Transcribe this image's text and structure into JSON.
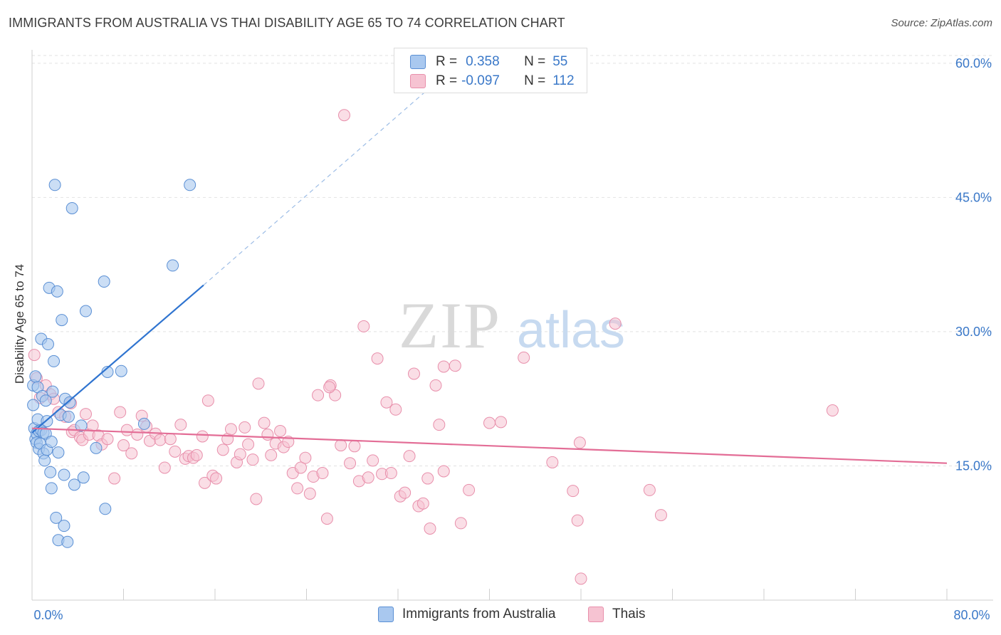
{
  "title": "IMMIGRANTS FROM AUSTRALIA VS THAI DISABILITY AGE 65 TO 74 CORRELATION CHART",
  "source": "Source: ZipAtlas.com",
  "watermark": {
    "zip": "ZIP",
    "atlas": "atlas"
  },
  "legend": {
    "rows": [
      {
        "r_label": "R =",
        "r_value": "0.358",
        "n_label": "N =",
        "n_value": "55"
      },
      {
        "r_label": "R =",
        "r_value": "-0.097",
        "n_label": "N =",
        "n_value": "112"
      }
    ]
  },
  "bottom_legend": [
    "Immigrants from Australia",
    "Thais"
  ],
  "colors": {
    "blue_fill": "#a9c8ef",
    "blue_stroke": "#5a8fd4",
    "blue_line": "#2f74d0",
    "pink_fill": "#f6c3d2",
    "pink_stroke": "#e88fab",
    "pink_line": "#e36d96",
    "grid": "#e2e2e2",
    "tick_label": "#3a78c8"
  },
  "chart_data": {
    "type": "scatter",
    "title": "IMMIGRANTS FROM AUSTRALIA VS THAI DISABILITY AGE 65 TO 74 CORRELATION CHART",
    "xlabel": "",
    "ylabel": "Disability Age 65 to 74",
    "xlim": [
      0,
      80
    ],
    "ylim": [
      0,
      61.5
    ],
    "x_tick_labels": [
      "0.0%",
      "80.0%"
    ],
    "y_tick_labels": [
      "15.0%",
      "30.0%",
      "45.0%",
      "60.0%"
    ],
    "y_ticks": [
      15,
      30,
      45,
      60
    ],
    "legend_placement": "top-center",
    "grid": true,
    "series": [
      {
        "name": "Immigrants from Australia",
        "r": 0.358,
        "n": 55,
        "trend": {
          "x0": 0,
          "y0": 18.7,
          "x1": 15.0,
          "y1": 35.2,
          "dash_to_x": 35.0,
          "dash_to_y": 57.5
        },
        "points": [
          [
            0.1,
            24.0
          ],
          [
            0.1,
            21.8
          ],
          [
            0.2,
            19.2
          ],
          [
            0.3,
            18.0
          ],
          [
            0.4,
            18.6
          ],
          [
            0.4,
            17.6
          ],
          [
            0.5,
            20.2
          ],
          [
            0.5,
            23.8
          ],
          [
            0.6,
            18.9
          ],
          [
            0.6,
            16.9
          ],
          [
            0.7,
            17.5
          ],
          [
            0.8,
            19.0
          ],
          [
            0.8,
            29.2
          ],
          [
            0.9,
            22.8
          ],
          [
            1.0,
            18.7
          ],
          [
            1.0,
            16.4
          ],
          [
            1.1,
            15.6
          ],
          [
            1.2,
            18.6
          ],
          [
            1.3,
            16.8
          ],
          [
            1.3,
            20.0
          ],
          [
            1.4,
            28.6
          ],
          [
            1.5,
            34.9
          ],
          [
            1.6,
            14.3
          ],
          [
            1.7,
            12.5
          ],
          [
            1.7,
            17.7
          ],
          [
            1.8,
            23.3
          ],
          [
            1.9,
            26.7
          ],
          [
            2.0,
            46.4
          ],
          [
            2.1,
            9.2
          ],
          [
            2.2,
            34.5
          ],
          [
            2.3,
            16.5
          ],
          [
            2.3,
            6.7
          ],
          [
            2.5,
            20.7
          ],
          [
            2.6,
            31.3
          ],
          [
            2.8,
            14.0
          ],
          [
            2.8,
            8.3
          ],
          [
            2.9,
            22.5
          ],
          [
            3.1,
            6.5
          ],
          [
            3.2,
            20.5
          ],
          [
            3.3,
            22.1
          ],
          [
            3.5,
            43.8
          ],
          [
            3.7,
            12.9
          ],
          [
            4.5,
            13.7
          ],
          [
            4.7,
            32.3
          ],
          [
            5.6,
            17.0
          ],
          [
            6.3,
            35.6
          ],
          [
            6.4,
            10.2
          ],
          [
            6.6,
            25.5
          ],
          [
            7.8,
            25.6
          ],
          [
            9.8,
            19.7
          ],
          [
            12.3,
            37.4
          ],
          [
            13.8,
            46.4
          ],
          [
            4.3,
            19.5
          ],
          [
            1.2,
            22.3
          ],
          [
            0.3,
            25.0
          ]
        ]
      },
      {
        "name": "Thais",
        "r": -0.097,
        "n": 112,
        "trend": {
          "x0": 0,
          "y0": 19.2,
          "x1": 80.0,
          "y1": 15.3
        },
        "points": [
          [
            0.2,
            27.4
          ],
          [
            0.4,
            24.8
          ],
          [
            0.7,
            22.6
          ],
          [
            1.2,
            24.0
          ],
          [
            1.6,
            23.0
          ],
          [
            1.9,
            22.5
          ],
          [
            2.3,
            21.0
          ],
          [
            2.9,
            20.5
          ],
          [
            3.4,
            22.0
          ],
          [
            3.5,
            18.8
          ],
          [
            3.7,
            19.0
          ],
          [
            4.2,
            18.2
          ],
          [
            4.4,
            17.9
          ],
          [
            4.7,
            20.8
          ],
          [
            5.0,
            18.5
          ],
          [
            5.3,
            19.5
          ],
          [
            5.8,
            18.4
          ],
          [
            6.1,
            17.4
          ],
          [
            6.6,
            18.0
          ],
          [
            7.2,
            13.6
          ],
          [
            7.7,
            21.0
          ],
          [
            8.0,
            17.3
          ],
          [
            8.3,
            19.0
          ],
          [
            8.7,
            16.4
          ],
          [
            9.2,
            18.5
          ],
          [
            9.6,
            20.6
          ],
          [
            10.0,
            19.4
          ],
          [
            10.3,
            17.8
          ],
          [
            10.8,
            18.6
          ],
          [
            11.2,
            17.9
          ],
          [
            11.6,
            14.8
          ],
          [
            12.1,
            18.0
          ],
          [
            12.5,
            16.6
          ],
          [
            13.0,
            19.6
          ],
          [
            13.4,
            15.8
          ],
          [
            13.7,
            16.1
          ],
          [
            14.1,
            15.9
          ],
          [
            14.4,
            16.2
          ],
          [
            14.9,
            18.3
          ],
          [
            15.1,
            13.1
          ],
          [
            15.4,
            22.3
          ],
          [
            15.8,
            13.9
          ],
          [
            16.1,
            13.6
          ],
          [
            16.7,
            16.8
          ],
          [
            17.1,
            18.0
          ],
          [
            17.4,
            19.1
          ],
          [
            17.9,
            15.4
          ],
          [
            18.2,
            16.3
          ],
          [
            18.6,
            19.3
          ],
          [
            18.9,
            17.4
          ],
          [
            19.3,
            15.7
          ],
          [
            19.6,
            11.3
          ],
          [
            19.8,
            24.2
          ],
          [
            20.3,
            19.8
          ],
          [
            20.6,
            18.5
          ],
          [
            20.9,
            16.2
          ],
          [
            21.3,
            17.5
          ],
          [
            21.7,
            18.9
          ],
          [
            22.0,
            17.1
          ],
          [
            22.4,
            17.7
          ],
          [
            22.8,
            14.2
          ],
          [
            23.2,
            12.5
          ],
          [
            23.5,
            14.8
          ],
          [
            23.9,
            15.9
          ],
          [
            24.3,
            11.9
          ],
          [
            24.6,
            13.8
          ],
          [
            25.0,
            22.9
          ],
          [
            25.4,
            14.2
          ],
          [
            25.8,
            9.1
          ],
          [
            26.1,
            24.0
          ],
          [
            26.5,
            22.9
          ],
          [
            27.0,
            17.3
          ],
          [
            27.3,
            54.2
          ],
          [
            27.8,
            15.3
          ],
          [
            28.2,
            17.2
          ],
          [
            28.6,
            13.3
          ],
          [
            29.0,
            30.6
          ],
          [
            29.4,
            13.7
          ],
          [
            29.8,
            15.6
          ],
          [
            30.2,
            27.0
          ],
          [
            30.6,
            14.1
          ],
          [
            31.0,
            22.1
          ],
          [
            31.4,
            14.2
          ],
          [
            31.8,
            21.3
          ],
          [
            32.2,
            11.6
          ],
          [
            32.6,
            12.0
          ],
          [
            33.0,
            16.1
          ],
          [
            33.4,
            25.3
          ],
          [
            33.8,
            10.5
          ],
          [
            34.2,
            10.8
          ],
          [
            34.6,
            13.6
          ],
          [
            34.8,
            8.0
          ],
          [
            35.3,
            24.0
          ],
          [
            35.6,
            19.6
          ],
          [
            36.0,
            14.4
          ],
          [
            37.0,
            26.2
          ],
          [
            37.5,
            8.6
          ],
          [
            38.2,
            12.3
          ],
          [
            40.0,
            19.8
          ],
          [
            41.0,
            19.9
          ],
          [
            43.0,
            27.1
          ],
          [
            45.5,
            15.4
          ],
          [
            47.3,
            12.2
          ],
          [
            47.7,
            8.9
          ],
          [
            47.9,
            17.6
          ],
          [
            48.0,
            2.4
          ],
          [
            51.0,
            30.9
          ],
          [
            54.0,
            12.3
          ],
          [
            55.0,
            9.5
          ],
          [
            70.0,
            21.2
          ],
          [
            36.0,
            26.1
          ],
          [
            26.0,
            23.8
          ]
        ]
      }
    ]
  }
}
